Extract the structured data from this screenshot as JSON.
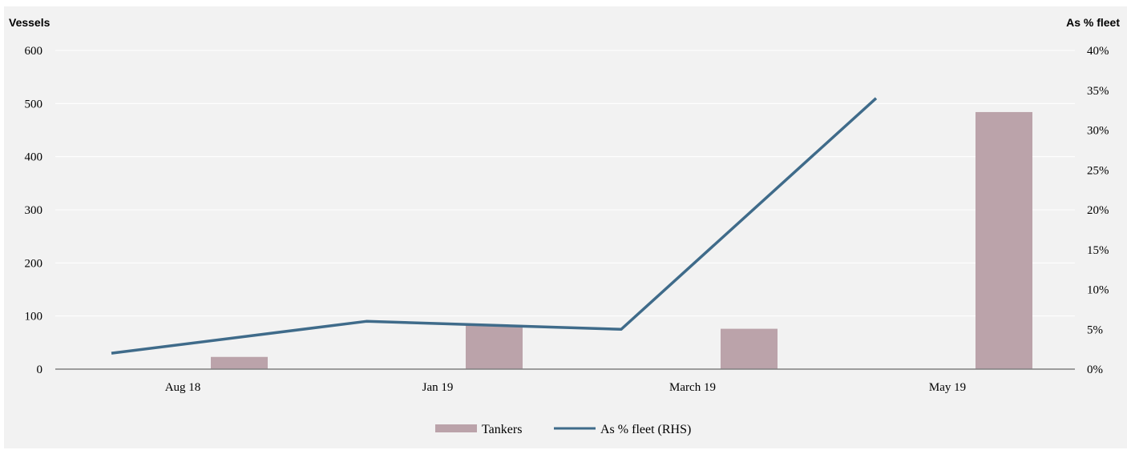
{
  "chart_data": {
    "type": "bar",
    "categories": [
      "Aug 18",
      "Jan 19",
      "March 19",
      "May 19"
    ],
    "series": [
      {
        "name": "Tankers",
        "type": "bar",
        "axis": "left",
        "values": [
          23,
          83,
          76,
          484
        ]
      },
      {
        "name": "As % fleet (RHS)",
        "type": "line",
        "axis": "right",
        "values": [
          2,
          6,
          5,
          34
        ]
      }
    ],
    "ylabel": "Vessels",
    "y2label": "As % fleet",
    "ylim": [
      0,
      600
    ],
    "y2lim": [
      0,
      40
    ],
    "yticks": [
      "0",
      "100",
      "200",
      "300",
      "400",
      "500",
      "600"
    ],
    "y2ticks": [
      "0%",
      "5%",
      "10%",
      "15%",
      "20%",
      "25%",
      "30%",
      "35%",
      "40%"
    ],
    "grid": true,
    "legend": "bottom-center",
    "colors": {
      "bar": "#bba3aa",
      "line": "#3f6b8a",
      "background": "#f2f2f2",
      "grid": "#ffffff",
      "axis": "#7f7f7f"
    }
  }
}
